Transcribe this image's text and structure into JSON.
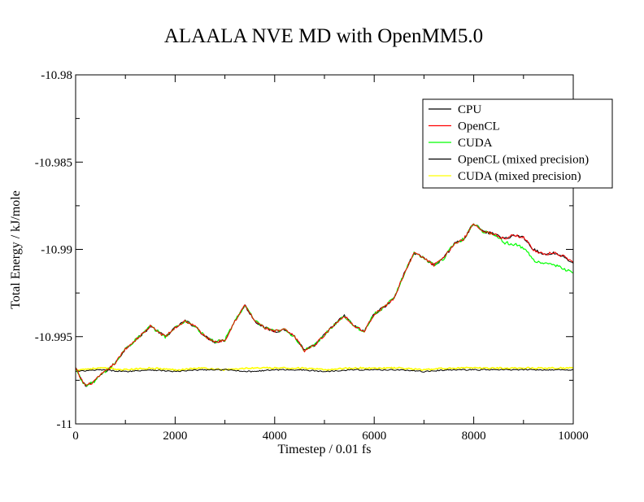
{
  "chart_data": {
    "type": "line",
    "title": "ALAALA NVE MD with OpenMM5.0",
    "xlabel": "Timestep / 0.01 fs",
    "ylabel": "Total Energy / kJ/mole",
    "xlim": [
      0,
      10000
    ],
    "ylim": [
      -11,
      -10.98
    ],
    "x_ticks": [
      0,
      2000,
      4000,
      6000,
      8000,
      10000
    ],
    "x_tick_labels": [
      "0",
      "2000",
      "4000",
      "6000",
      "8000",
      "10000"
    ],
    "y_ticks": [
      -10.98,
      -10.985,
      -10.99,
      -10.995,
      -11
    ],
    "y_tick_labels": [
      "-10.98",
      "-10.985",
      "-10.99",
      "-10.995",
      "-11"
    ],
    "grid": false,
    "legend_position": "top-right",
    "series": [
      {
        "name": "CPU",
        "color": "#000000",
        "x": [
          0,
          100,
          200,
          300,
          400,
          500,
          600,
          800,
          1000,
          1200,
          1400,
          1500,
          1600,
          1800,
          2000,
          2200,
          2400,
          2600,
          2800,
          3000,
          3200,
          3400,
          3600,
          3800,
          4000,
          4200,
          4400,
          4600,
          4800,
          5000,
          5200,
          5400,
          5600,
          5800,
          6000,
          6200,
          6400,
          6600,
          6800,
          7000,
          7200,
          7400,
          7600,
          7800,
          8000,
          8200,
          8400,
          8600,
          8800,
          9000,
          9200,
          9400,
          9600,
          9800,
          10000
        ],
        "values": [
          -10.9968,
          -10.9974,
          -10.9978,
          -10.9977,
          -10.9975,
          -10.9972,
          -10.997,
          -10.9965,
          -10.9957,
          -10.9952,
          -10.9947,
          -10.9944,
          -10.9946,
          -10.995,
          -10.9945,
          -10.9941,
          -10.9944,
          -10.995,
          -10.9953,
          -10.9952,
          -10.9941,
          -10.9932,
          -10.9941,
          -10.9945,
          -10.9947,
          -10.9946,
          -10.995,
          -10.9958,
          -10.9955,
          -10.9949,
          -10.9943,
          -10.9938,
          -10.9944,
          -10.9947,
          -10.9937,
          -10.9933,
          -10.9928,
          -10.9914,
          -10.9902,
          -10.9905,
          -10.9909,
          -10.9905,
          -10.9897,
          -10.9894,
          -10.9885,
          -10.989,
          -10.9891,
          -10.9894,
          -10.9892,
          -10.9893,
          -10.99,
          -10.9903,
          -10.9902,
          -10.9904,
          -10.9908
        ]
      },
      {
        "name": "OpenCL",
        "color": "#ff0000",
        "x": [
          0,
          100,
          200,
          300,
          400,
          500,
          600,
          800,
          1000,
          1200,
          1400,
          1500,
          1600,
          1800,
          2000,
          2200,
          2400,
          2600,
          2800,
          3000,
          3200,
          3400,
          3600,
          3800,
          4000,
          4200,
          4400,
          4600,
          4800,
          5000,
          5200,
          5400,
          5600,
          5800,
          6000,
          6200,
          6400,
          6600,
          6800,
          7000,
          7200,
          7400,
          7600,
          7800,
          8000,
          8200,
          8400,
          8600,
          8800,
          9000,
          9200,
          9400,
          9600,
          9800,
          10000
        ],
        "values": [
          -10.9968,
          -10.9974,
          -10.9978,
          -10.9977,
          -10.9975,
          -10.9972,
          -10.997,
          -10.9965,
          -10.9957,
          -10.9952,
          -10.9947,
          -10.9944,
          -10.9946,
          -10.995,
          -10.9945,
          -10.9941,
          -10.9944,
          -10.995,
          -10.9953,
          -10.9952,
          -10.9941,
          -10.9932,
          -10.9941,
          -10.9945,
          -10.9947,
          -10.9946,
          -10.995,
          -10.9958,
          -10.9955,
          -10.9949,
          -10.9943,
          -10.9938,
          -10.9944,
          -10.9947,
          -10.9937,
          -10.9933,
          -10.9928,
          -10.9914,
          -10.9902,
          -10.9905,
          -10.9909,
          -10.9905,
          -10.9897,
          -10.9894,
          -10.9885,
          -10.989,
          -10.9891,
          -10.9894,
          -10.9892,
          -10.9893,
          -10.99,
          -10.9903,
          -10.9902,
          -10.9904,
          -10.9908
        ]
      },
      {
        "name": "CUDA",
        "color": "#00ff00",
        "x": [
          0,
          100,
          200,
          300,
          400,
          500,
          600,
          800,
          1000,
          1200,
          1400,
          1500,
          1600,
          1800,
          2000,
          2200,
          2400,
          2600,
          2800,
          3000,
          3200,
          3400,
          3600,
          3800,
          4000,
          4200,
          4400,
          4600,
          4800,
          5000,
          5200,
          5400,
          5600,
          5800,
          6000,
          6200,
          6400,
          6600,
          6800,
          7000,
          7200,
          7400,
          7600,
          7800,
          8000,
          8200,
          8400,
          8600,
          8800,
          9000,
          9200,
          9400,
          9600,
          9800,
          10000
        ],
        "values": [
          -10.9968,
          -10.9974,
          -10.9978,
          -10.9977,
          -10.9975,
          -10.9972,
          -10.997,
          -10.9965,
          -10.9957,
          -10.9952,
          -10.9947,
          -10.9944,
          -10.9946,
          -10.995,
          -10.9945,
          -10.9941,
          -10.9944,
          -10.995,
          -10.9953,
          -10.9952,
          -10.9941,
          -10.9932,
          -10.9941,
          -10.9945,
          -10.9947,
          -10.9946,
          -10.995,
          -10.9958,
          -10.9955,
          -10.9949,
          -10.9943,
          -10.9938,
          -10.9944,
          -10.9947,
          -10.9937,
          -10.9933,
          -10.9928,
          -10.9914,
          -10.9902,
          -10.9905,
          -10.9909,
          -10.9905,
          -10.9897,
          -10.9894,
          -10.9885,
          -10.989,
          -10.9891,
          -10.9896,
          -10.9897,
          -10.9899,
          -10.9906,
          -10.9908,
          -10.9909,
          -10.9911,
          -10.9913
        ]
      },
      {
        "name": "OpenCL (mixed precision)",
        "color": "#000000",
        "x": [
          0,
          500,
          1000,
          1500,
          2000,
          2500,
          3000,
          3500,
          4000,
          4500,
          5000,
          5500,
          6000,
          6500,
          7000,
          7500,
          8000,
          8500,
          9000,
          9500,
          10000
        ],
        "values": [
          -10.997,
          -10.9969,
          -10.997,
          -10.9969,
          -10.997,
          -10.9969,
          -10.9969,
          -10.997,
          -10.9969,
          -10.9969,
          -10.997,
          -10.9969,
          -10.9969,
          -10.9969,
          -10.997,
          -10.9969,
          -10.9969,
          -10.9969,
          -10.9969,
          -10.9969,
          -10.9969
        ]
      },
      {
        "name": "CUDA (mixed precision)",
        "color": "#ffff00",
        "x": [
          0,
          500,
          1000,
          1500,
          2000,
          2500,
          3000,
          3500,
          4000,
          4500,
          5000,
          5500,
          6000,
          6500,
          7000,
          7500,
          8000,
          8500,
          9000,
          9500,
          10000
        ],
        "values": [
          -10.9969,
          -10.9968,
          -10.9969,
          -10.9968,
          -10.9969,
          -10.9968,
          -10.9969,
          -10.9968,
          -10.9968,
          -10.9968,
          -10.9969,
          -10.9968,
          -10.9968,
          -10.9968,
          -10.9969,
          -10.9968,
          -10.9968,
          -10.9968,
          -10.9968,
          -10.9968,
          -10.9968
        ]
      }
    ]
  }
}
